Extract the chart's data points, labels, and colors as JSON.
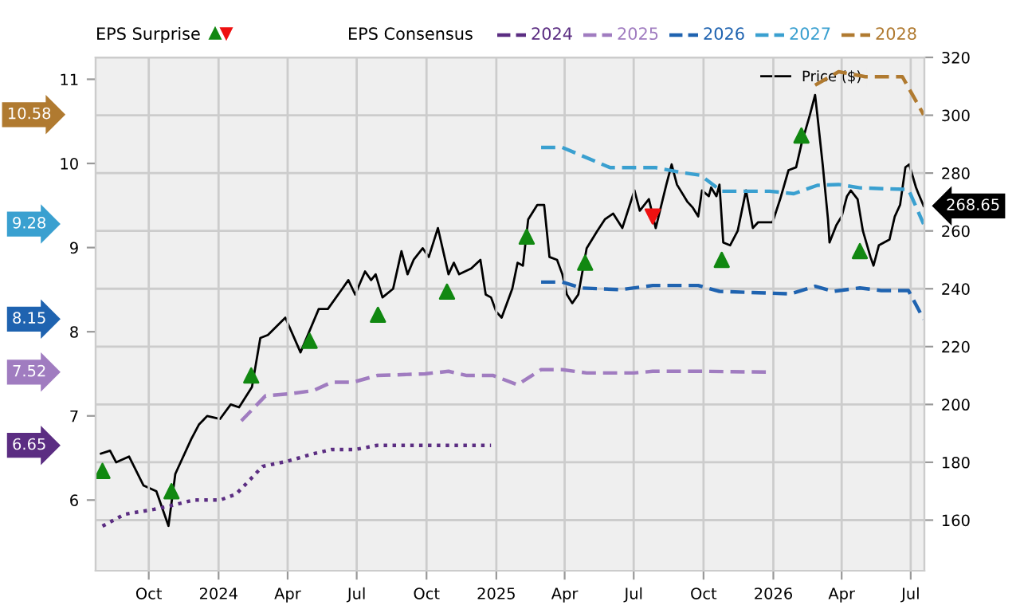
{
  "chart_data": {
    "type": "line",
    "annotations": [
      "EPS Surprise",
      "10.58",
      "9.28",
      "8.15",
      "7.52",
      "6.65"
    ],
    "legend_title": "EPS Consensus",
    "legend": "top",
    "grid": true,
    "xlim": [
      "2023-07-23",
      "2026-07-19"
    ],
    "xticks": [
      {
        "value": "2023-10-01",
        "label": "Oct"
      },
      {
        "value": "2024-01-01",
        "label": "2024"
      },
      {
        "value": "2024-04-01",
        "label": "Apr"
      },
      {
        "value": "2024-07-01",
        "label": "Jul"
      },
      {
        "value": "2024-10-01",
        "label": "Oct"
      },
      {
        "value": "2025-01-01",
        "label": "2025"
      },
      {
        "value": "2025-04-01",
        "label": "Apr"
      },
      {
        "value": "2025-07-01",
        "label": "Jul"
      },
      {
        "value": "2025-10-01",
        "label": "Oct"
      },
      {
        "value": "2026-01-01",
        "label": "2026"
      },
      {
        "value": "2026-04-01",
        "label": "Apr"
      },
      {
        "value": "2026-07-01",
        "label": "Jul"
      }
    ],
    "ylim": [
      5.16,
      11.26
    ],
    "yticks": [
      6,
      7,
      8,
      9,
      10,
      11
    ],
    "y2lim": [
      142.5,
      320
    ],
    "y2ticks": [
      160,
      180,
      200,
      220,
      240,
      260,
      280,
      300,
      320
    ],
    "series": [
      {
        "name": "2024",
        "color": "#5b2d82",
        "line_style": "dotted",
        "x": [
          "2023-08-01",
          "2023-08-30",
          "2023-10-08",
          "2023-10-29",
          "2023-11-29",
          "2024-01-03",
          "2024-01-24",
          "2024-02-07",
          "2024-02-28",
          "2024-03-31",
          "2024-05-05",
          "2024-05-29",
          "2024-06-29",
          "2024-07-28",
          "2024-09-29",
          "2024-12-25"
        ],
        "values": [
          5.69,
          5.83,
          5.89,
          5.93,
          6.0,
          6.0,
          6.07,
          6.2,
          6.4,
          6.46,
          6.55,
          6.6,
          6.6,
          6.65,
          6.65,
          6.65
        ]
      },
      {
        "name": "2025",
        "color": "#a07cc0",
        "line_style": "dashed",
        "x": [
          "2024-01-31",
          "2024-03-03",
          "2024-04-01",
          "2024-05-05",
          "2024-05-29",
          "2024-06-26",
          "2024-07-28",
          "2024-09-29",
          "2024-10-30",
          "2024-11-23",
          "2024-12-28",
          "2025-01-29",
          "2025-03-01",
          "2025-03-29",
          "2025-04-30",
          "2025-07-01",
          "2025-07-26",
          "2025-10-01",
          "2025-12-27"
        ],
        "values": [
          6.94,
          7.24,
          7.26,
          7.3,
          7.4,
          7.4,
          7.48,
          7.5,
          7.53,
          7.48,
          7.48,
          7.37,
          7.55,
          7.55,
          7.51,
          7.51,
          7.53,
          7.53,
          7.52
        ]
      },
      {
        "name": "2026",
        "color": "#1f63b0",
        "line_style": "dashed",
        "x": [
          "2025-03-01",
          "2025-03-29",
          "2025-04-23",
          "2025-06-14",
          "2025-07-26",
          "2025-09-24",
          "2025-10-22",
          "2026-01-24",
          "2026-02-25",
          "2026-03-21",
          "2026-04-25",
          "2026-05-23",
          "2026-06-28",
          "2026-07-18"
        ],
        "values": [
          8.59,
          8.59,
          8.52,
          8.5,
          8.55,
          8.55,
          8.48,
          8.45,
          8.54,
          8.48,
          8.52,
          8.49,
          8.49,
          8.15
        ]
      },
      {
        "name": "2027",
        "color": "#3aa0d0",
        "line_style": "dashed",
        "x": [
          "2025-03-01",
          "2025-03-29",
          "2025-05-31",
          "2025-07-30",
          "2025-09-03",
          "2025-09-27",
          "2025-10-25",
          "2025-12-27",
          "2026-01-28",
          "2026-02-28",
          "2026-03-28",
          "2026-04-25",
          "2026-06-28",
          "2026-07-18"
        ],
        "values": [
          10.19,
          10.19,
          9.95,
          9.95,
          9.89,
          9.86,
          9.67,
          9.67,
          9.64,
          9.74,
          9.75,
          9.71,
          9.69,
          9.28
        ]
      },
      {
        "name": "2028",
        "color": "#b07a30",
        "line_style": "dashed",
        "x": [
          "2026-02-25",
          "2026-03-28",
          "2026-05-02",
          "2026-06-20",
          "2026-07-18"
        ],
        "values": [
          10.93,
          11.09,
          11.03,
          11.03,
          10.58
        ]
      },
      {
        "name": "Price ($)",
        "color": "#000000",
        "axis": "y2",
        "line_style": "solid",
        "x": [
          "2023-07-30",
          "2023-08-11",
          "2023-08-19",
          "2023-09-05",
          "2023-09-24",
          "2023-10-11",
          "2023-10-27",
          "2023-11-05",
          "2023-11-26",
          "2023-12-06",
          "2023-12-17",
          "2024-01-03",
          "2024-01-17",
          "2024-01-28",
          "2024-02-14",
          "2024-02-25",
          "2024-03-06",
          "2024-03-29",
          "2024-04-18",
          "2024-05-12",
          "2024-05-24",
          "2024-06-12",
          "2024-06-20",
          "2024-06-29",
          "2024-07-12",
          "2024-07-20",
          "2024-07-26",
          "2024-08-04",
          "2024-08-18",
          "2024-08-29",
          "2024-09-06",
          "2024-09-14",
          "2024-09-26",
          "2024-10-04",
          "2024-10-16",
          "2024-10-30",
          "2024-11-06",
          "2024-11-13",
          "2024-11-29",
          "2024-12-11",
          "2024-12-18",
          "2024-12-25",
          "2025-01-01",
          "2025-01-08",
          "2025-01-22",
          "2025-01-29",
          "2025-02-05",
          "2025-02-12",
          "2025-02-24",
          "2025-03-05",
          "2025-03-12",
          "2025-03-22",
          "2025-03-29",
          "2025-04-04",
          "2025-04-11",
          "2025-04-19",
          "2025-04-30",
          "2025-05-14",
          "2025-05-24",
          "2025-06-04",
          "2025-06-16",
          "2025-07-02",
          "2025-07-09",
          "2025-07-21",
          "2025-07-30",
          "2025-08-13",
          "2025-08-20",
          "2025-08-27",
          "2025-09-10",
          "2025-09-17",
          "2025-09-24",
          "2025-09-29",
          "2025-10-08",
          "2025-10-11",
          "2025-10-18",
          "2025-10-22",
          "2025-10-27",
          "2025-11-05",
          "2025-11-15",
          "2025-11-26",
          "2025-12-05",
          "2025-12-12",
          "2025-12-22",
          "2025-12-31",
          "2026-01-10",
          "2026-01-21",
          "2026-01-31",
          "2026-02-07",
          "2026-02-18",
          "2026-02-25",
          "2026-02-28",
          "2026-03-07",
          "2026-03-14",
          "2026-03-16",
          "2026-03-25",
          "2026-04-01",
          "2026-04-08",
          "2026-04-13",
          "2026-04-22",
          "2026-04-29",
          "2026-05-09",
          "2026-05-13",
          "2026-05-20",
          "2026-06-03",
          "2026-06-10",
          "2026-06-17",
          "2026-06-24",
          "2026-06-29",
          "2026-07-08",
          "2026-07-11",
          "2026-07-18"
        ],
        "values": [
          183,
          184,
          180,
          182,
          172,
          170,
          158,
          176,
          188,
          193,
          196,
          195,
          200,
          199,
          206,
          223,
          224,
          230,
          218,
          233,
          233,
          240,
          243,
          238,
          246,
          243,
          245,
          237,
          240,
          253,
          245,
          250,
          254,
          251,
          261,
          245,
          249,
          245,
          247,
          250,
          238,
          237,
          232,
          230,
          240,
          249,
          248,
          264,
          269,
          269,
          251,
          250,
          245,
          238,
          235,
          238,
          254,
          260,
          264,
          266,
          261,
          274,
          267,
          271,
          261,
          276,
          283,
          276,
          270,
          268,
          265,
          274,
          272,
          275,
          272,
          276,
          256,
          255,
          260,
          274,
          261,
          263,
          263,
          263,
          271,
          281,
          282,
          290,
          300,
          307,
          300,
          283,
          264,
          256,
          262,
          265,
          272,
          274,
          271,
          260,
          251,
          248,
          255,
          257,
          265,
          269,
          282,
          283,
          275,
          273,
          268.65
        ],
        "value_labels": [
          null,
          null,
          null,
          null,
          null,
          null,
          null,
          null,
          null,
          null,
          null,
          null,
          null,
          null,
          null,
          null,
          null,
          null,
          null,
          null,
          null,
          null,
          null,
          null,
          null,
          null,
          null,
          null,
          null,
          null,
          null,
          null,
          null,
          null,
          null,
          null,
          null,
          null,
          null,
          null,
          null,
          null,
          null,
          null,
          null,
          null,
          null,
          null,
          null,
          null,
          null,
          null,
          null,
          null,
          null,
          null,
          null,
          null,
          null,
          null,
          null,
          null,
          null,
          null,
          null,
          null,
          null,
          null,
          null,
          null,
          null,
          null,
          null,
          null,
          null,
          null,
          null,
          null,
          null,
          null,
          null,
          null,
          null,
          null,
          null,
          null,
          null,
          null,
          null,
          null,
          null,
          null,
          null,
          null,
          null,
          null,
          null,
          null,
          null,
          null,
          null,
          null,
          null,
          null,
          null,
          null,
          null,
          null,
          null,
          null,
          "268.65"
        ]
      },
      {
        "type": "scatter",
        "color": "#118811",
        "axis": "y2",
        "marker": "triangle",
        "x": [
          "2023-08-01",
          "2023-10-31",
          "2024-02-13",
          "2024-04-30",
          "2024-07-29",
          "2024-10-28",
          "2025-02-10",
          "2025-04-28",
          "2025-10-25",
          "2026-02-07",
          "2026-04-25"
        ],
        "values": [
          177,
          170,
          210,
          222,
          231,
          239,
          258,
          249,
          250,
          293,
          253
        ]
      },
      {
        "type": "scatter",
        "color": "#ee1111",
        "axis": "y2",
        "marker": "triangle-down",
        "x": [
          "2025-07-26"
        ],
        "values": [
          265
        ]
      }
    ]
  }
}
